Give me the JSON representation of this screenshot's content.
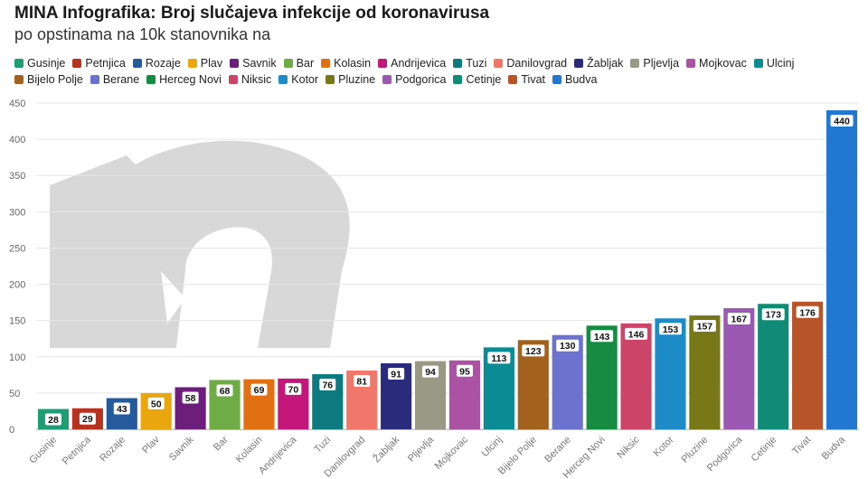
{
  "header": {
    "title": "MINA Infografika: Broj slučajeva infekcije od koronavirusa",
    "subtitle": "po opstinama na 10k stanovnika na"
  },
  "chart_data": {
    "type": "bar",
    "ylim": [
      0,
      450
    ],
    "yticks": [
      0,
      50,
      100,
      150,
      200,
      250,
      300,
      350,
      400,
      450
    ],
    "grid": true,
    "legend_position": "top",
    "categories": [
      "Gusinje",
      "Petnjica",
      "Rozaje",
      "Plav",
      "Savnik",
      "Bar",
      "Kolasin",
      "Andrijevica",
      "Tuzi",
      "Danilovgrad",
      "Žabljak",
      "Pljevlja",
      "Mojkovac",
      "Ulcinj",
      "Bijelo Polje",
      "Berane",
      "Herceg Novi",
      "Niksic",
      "Kotor",
      "Pluzine",
      "Podgorica",
      "Cetinje",
      "Tivat",
      "Budva"
    ],
    "values": [
      28,
      29,
      43,
      50,
      58,
      68,
      69,
      70,
      76,
      81,
      91,
      94,
      95,
      113,
      123,
      130,
      143,
      146,
      153,
      157,
      167,
      173,
      176,
      440
    ],
    "colors": [
      "#1e9e72",
      "#b83222",
      "#255a9c",
      "#e9a70d",
      "#6d1e7c",
      "#6fac45",
      "#e07012",
      "#c3177c",
      "#0c7a7f",
      "#f0776a",
      "#2b2b7d",
      "#999a86",
      "#ac52a4",
      "#0b8b93",
      "#a2611c",
      "#6c72cf",
      "#168c43",
      "#cc4468",
      "#1c8bc8",
      "#787818",
      "#9c59b4",
      "#108c76",
      "#b75428",
      "#2277d0"
    ]
  }
}
